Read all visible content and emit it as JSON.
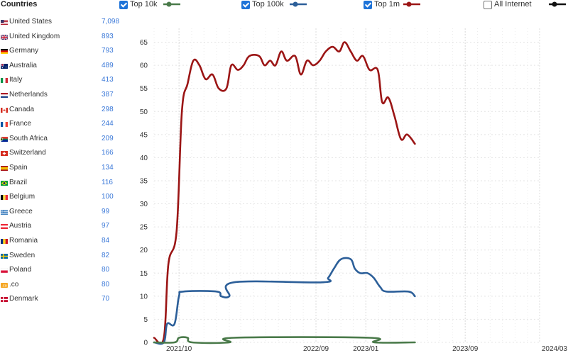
{
  "countries": {
    "title": "Countries",
    "items": [
      {
        "name": "United States",
        "count": "7,098",
        "flag": "us"
      },
      {
        "name": "United Kingdom",
        "count": "893",
        "flag": "gb"
      },
      {
        "name": "Germany",
        "count": "793",
        "flag": "de"
      },
      {
        "name": "Australia",
        "count": "489",
        "flag": "au"
      },
      {
        "name": "Italy",
        "count": "413",
        "flag": "it"
      },
      {
        "name": "Netherlands",
        "count": "387",
        "flag": "nl"
      },
      {
        "name": "Canada",
        "count": "298",
        "flag": "ca"
      },
      {
        "name": "France",
        "count": "244",
        "flag": "fr"
      },
      {
        "name": "South Africa",
        "count": "209",
        "flag": "za"
      },
      {
        "name": "Switzerland",
        "count": "166",
        "flag": "ch"
      },
      {
        "name": "Spain",
        "count": "134",
        "flag": "es"
      },
      {
        "name": "Brazil",
        "count": "116",
        "flag": "br"
      },
      {
        "name": "Belgium",
        "count": "100",
        "flag": "be"
      },
      {
        "name": "Greece",
        "count": "99",
        "flag": "gr"
      },
      {
        "name": "Austria",
        "count": "97",
        "flag": "at"
      },
      {
        "name": "Romania",
        "count": "84",
        "flag": "ro"
      },
      {
        "name": "Sweden",
        "count": "82",
        "flag": "se"
      },
      {
        "name": "Poland",
        "count": "80",
        "flag": "pl"
      },
      {
        "name": ".co",
        "count": "80",
        "flag": "co"
      },
      {
        "name": "Denmark",
        "count": "70",
        "flag": "dk"
      }
    ]
  },
  "legend": {
    "items": [
      {
        "label": "Top 10k",
        "checked": true,
        "color": "#4a7a4a"
      },
      {
        "label": "Top 100k",
        "checked": true,
        "color": "#2c5f99"
      },
      {
        "label": "Top 1m",
        "checked": true,
        "color": "#9b1515"
      },
      {
        "label": "All Internet",
        "checked": false,
        "color": "#111111"
      }
    ]
  },
  "chart_data": {
    "type": "line",
    "x": [
      "2021-08",
      "2021-09",
      "2021-10",
      "2021-11",
      "2021-12",
      "2022-01",
      "2022-02",
      "2022-03",
      "2022-04",
      "2022-05",
      "2022-06",
      "2022-07",
      "2022-08",
      "2022-09",
      "2022-10",
      "2022-11",
      "2022-12",
      "2023-01",
      "2023-02",
      "2023-03",
      "2023-04",
      "2023-05",
      "2023-06",
      "2023-07",
      "2023-08",
      "2023-09",
      "2023-10",
      "2023-11",
      "2023-12",
      "2024-01",
      "2024-02",
      "2024-03"
    ],
    "x_tick_labels": [
      "2021/10",
      "2022/09",
      "2023/01",
      "2023/09",
      "2024/03"
    ],
    "y_ticks": [
      0,
      5,
      10,
      15,
      20,
      25,
      30,
      35,
      40,
      45,
      50,
      55,
      60,
      65
    ],
    "ylim": [
      0,
      68
    ],
    "grid": true,
    "series": [
      {
        "name": "Top 1m",
        "color": "#9b1515",
        "points": [
          [
            "2021-08-01",
            1
          ],
          [
            "2021-08-25",
            1
          ],
          [
            "2021-09-05",
            17
          ],
          [
            "2021-09-25",
            24
          ],
          [
            "2021-10-08",
            50
          ],
          [
            "2021-10-22",
            56
          ],
          [
            "2021-11-05",
            61
          ],
          [
            "2021-11-20",
            60
          ],
          [
            "2021-12-05",
            57
          ],
          [
            "2021-12-22",
            58
          ],
          [
            "2022-01-06",
            55
          ],
          [
            "2022-01-25",
            55
          ],
          [
            "2022-02-06",
            60
          ],
          [
            "2022-02-22",
            59
          ],
          [
            "2022-03-08",
            60
          ],
          [
            "2022-03-22",
            62
          ],
          [
            "2022-04-15",
            62
          ],
          [
            "2022-04-28",
            60
          ],
          [
            "2022-05-12",
            61
          ],
          [
            "2022-05-25",
            60
          ],
          [
            "2022-06-08",
            63
          ],
          [
            "2022-06-22",
            61
          ],
          [
            "2022-07-12",
            62
          ],
          [
            "2022-07-26",
            58
          ],
          [
            "2022-08-10",
            61
          ],
          [
            "2022-08-25",
            60
          ],
          [
            "2022-09-10",
            61
          ],
          [
            "2022-09-25",
            63
          ],
          [
            "2022-10-12",
            64
          ],
          [
            "2022-10-28",
            63
          ],
          [
            "2022-11-10",
            65
          ],
          [
            "2022-11-25",
            63
          ],
          [
            "2022-12-10",
            61
          ],
          [
            "2022-12-25",
            62
          ],
          [
            "2023-01-10",
            59
          ],
          [
            "2023-01-30",
            59
          ],
          [
            "2023-02-10",
            52
          ],
          [
            "2023-02-25",
            53
          ],
          [
            "2023-03-12",
            49
          ],
          [
            "2023-03-28",
            44
          ],
          [
            "2023-04-12",
            45
          ],
          [
            "2023-05-01",
            43
          ]
        ]
      },
      {
        "name": "Top 100k",
        "color": "#2c5f99",
        "points": [
          [
            "2021-08-01",
            0
          ],
          [
            "2021-08-25",
            0
          ],
          [
            "2021-09-02",
            4
          ],
          [
            "2021-09-20",
            4
          ],
          [
            "2021-10-01",
            10
          ],
          [
            "2021-10-12",
            11
          ],
          [
            "2022-01-01",
            11
          ],
          [
            "2022-01-12",
            10
          ],
          [
            "2022-02-01",
            10
          ],
          [
            "2022-02-12",
            13
          ],
          [
            "2022-09-15",
            13
          ],
          [
            "2022-10-01",
            14
          ],
          [
            "2022-10-15",
            16
          ],
          [
            "2022-11-01",
            18
          ],
          [
            "2022-11-25",
            18
          ],
          [
            "2022-12-05",
            16
          ],
          [
            "2022-12-18",
            15
          ],
          [
            "2023-01-05",
            15
          ],
          [
            "2023-01-20",
            14
          ],
          [
            "2023-02-05",
            12
          ],
          [
            "2023-02-20",
            11
          ],
          [
            "2023-04-15",
            11
          ],
          [
            "2023-05-01",
            10
          ]
        ]
      },
      {
        "name": "Top 10k",
        "color": "#4a7a4a",
        "points": [
          [
            "2021-08-01",
            0
          ],
          [
            "2021-09-20",
            0
          ],
          [
            "2021-10-01",
            1
          ],
          [
            "2021-10-22",
            1
          ],
          [
            "2021-11-02",
            0
          ],
          [
            "2022-02-01",
            0
          ],
          [
            "2022-02-12",
            1
          ],
          [
            "2023-01-10",
            1
          ],
          [
            "2023-01-22",
            0
          ],
          [
            "2023-05-01",
            0
          ]
        ]
      }
    ]
  }
}
